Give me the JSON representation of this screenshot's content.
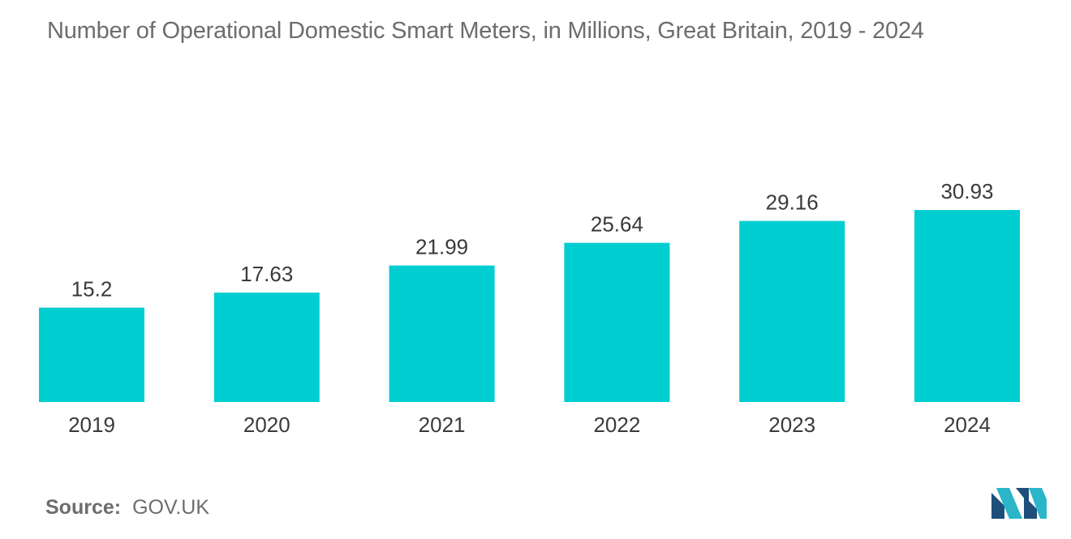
{
  "chart_data": {
    "type": "bar",
    "title": "Number of Operational Domestic Smart Meters, in Millions, Great Britain, 2019 - 2024",
    "categories": [
      "2019",
      "2020",
      "2021",
      "2022",
      "2023",
      "2024"
    ],
    "values": [
      15.2,
      17.63,
      21.99,
      25.64,
      29.16,
      30.93
    ],
    "value_labels": [
      "15.2",
      "17.63",
      "21.99",
      "25.64",
      "29.16",
      "30.93"
    ],
    "xlabel": "",
    "ylabel": "",
    "ylim": [
      0,
      38
    ],
    "grid": false,
    "bar_color": "#00ced1"
  },
  "source": {
    "label": "Source:",
    "value": "GOV.UK"
  },
  "logo": {
    "icon": "mordor-intelligence-logo-icon",
    "colors": [
      "#1e4f7a",
      "#2ab5c9"
    ]
  }
}
